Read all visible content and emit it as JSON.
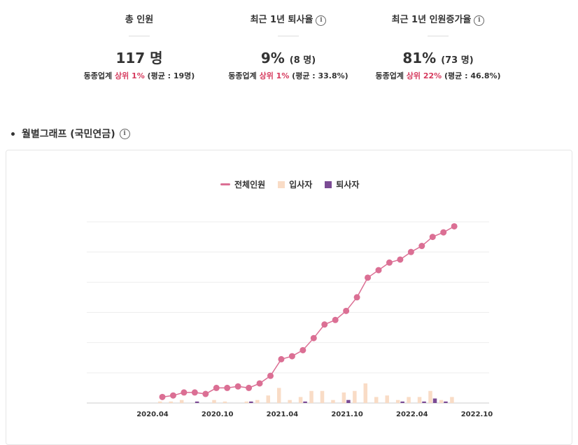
{
  "stats": [
    {
      "title": "총 인원",
      "value": "117 명",
      "value_sub": "",
      "info": false,
      "rank_prefix": "동종업계 ",
      "rank_highlight": "상위 1%",
      "rank_suffix": " (평균 : 19명)"
    },
    {
      "title": "최근 1년 퇴사율",
      "value": "9%",
      "value_sub": "(8 명)",
      "info": true,
      "rank_prefix": "동종업계 ",
      "rank_highlight": "상위 1%",
      "rank_suffix": " (평균 : 33.8%)"
    },
    {
      "title": "최근 1년 인원증가율",
      "value": "81%",
      "value_sub": "(73 명)",
      "info": true,
      "rank_prefix": "동종업계 ",
      "rank_highlight": "상위 22%",
      "rank_suffix": " (평균 : 46.8%)"
    }
  ],
  "section": {
    "title": "월별그래프 (국민연금)",
    "info": true
  },
  "colors": {
    "total": "#db6f94",
    "join": "#f9dcc6",
    "leave": "#7b4b94",
    "highlight": "#d63b5e"
  },
  "chart_data": {
    "type": "line",
    "legend": [
      "전체인원",
      "입사자",
      "퇴사자"
    ],
    "legend_position": "top-center",
    "grid": true,
    "ylim": [
      0,
      120
    ],
    "x_tick_labels": [
      "2020.04",
      "2020.10",
      "2021.04",
      "2021.10",
      "2022.04",
      "2022.10"
    ],
    "x": [
      "2020.04",
      "2020.05",
      "2020.06",
      "2020.07",
      "2020.08",
      "2020.09",
      "2020.10",
      "2020.11",
      "2020.12",
      "2021.01",
      "2021.02",
      "2021.03",
      "2021.04",
      "2021.05",
      "2021.06",
      "2021.07",
      "2021.08",
      "2021.09",
      "2021.10",
      "2021.11",
      "2021.12",
      "2022.01",
      "2022.02",
      "2022.03",
      "2022.04",
      "2022.05",
      "2022.06",
      "2022.07",
      "2022.08",
      "2022.09"
    ],
    "series": [
      {
        "name": "전체인원",
        "type": "line",
        "values": [
          4,
          5,
          7,
          7,
          6,
          10,
          10,
          11,
          10,
          13,
          18,
          29,
          31,
          35,
          43,
          52,
          55,
          61,
          70,
          83,
          88,
          93,
          95,
          100,
          104,
          110,
          113,
          117,
          null,
          null
        ]
      },
      {
        "name": "입사자",
        "type": "bar",
        "values": [
          1,
          1,
          2,
          0,
          0,
          2,
          1,
          0,
          1,
          2,
          5,
          10,
          2,
          4,
          8,
          8,
          2,
          7,
          8,
          13,
          4,
          5,
          2,
          4,
          4,
          8,
          2,
          4,
          0,
          0
        ]
      },
      {
        "name": "퇴사자",
        "type": "bar",
        "values": [
          0,
          0,
          0,
          1,
          0,
          0,
          0,
          0,
          1,
          0,
          0,
          0,
          0,
          1,
          0,
          0,
          0,
          2,
          0,
          0,
          0,
          0,
          1,
          0,
          1,
          3,
          1,
          0,
          0,
          0
        ]
      }
    ]
  }
}
